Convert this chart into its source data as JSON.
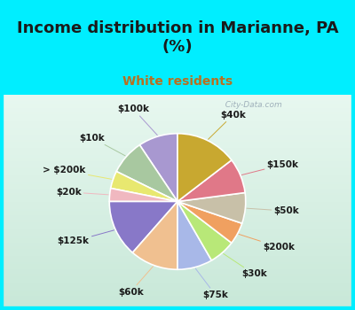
{
  "title": "Income distribution in Marianne, PA\n(%)",
  "subtitle": "White residents",
  "title_color": "#1a1a1a",
  "subtitle_color": "#b87020",
  "background_top": "#00eeff",
  "background_chart_top": "#e8f8f0",
  "background_chart_bottom": "#c8e8d8",
  "watermark": "  City-Data.com",
  "labels": [
    "$100k",
    "$10k",
    "> $200k",
    "$20k",
    "$125k",
    "$60k",
    "$75k",
    "$30k",
    "$200k",
    "$50k",
    "$150k",
    "$40k"
  ],
  "sizes": [
    9,
    8,
    4,
    3,
    13,
    11,
    8,
    6,
    5,
    7,
    8,
    14
  ],
  "colors": [
    "#a898d0",
    "#a8c8a0",
    "#e8e870",
    "#f0b8c0",
    "#8878c8",
    "#f0c090",
    "#a8b8e8",
    "#b8e878",
    "#f0a060",
    "#c8c0a8",
    "#e07888",
    "#c8a830"
  ],
  "label_fontsize": 7.5,
  "title_fontsize": 13,
  "subtitle_fontsize": 10
}
